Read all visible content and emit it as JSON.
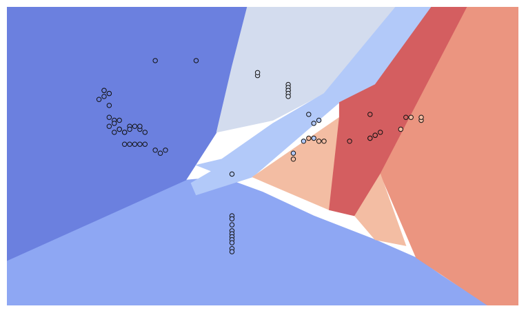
{
  "chart_data": {
    "type": "scatter",
    "title": "",
    "xlabel": "",
    "ylabel": "",
    "xlim": [
      0,
      100
    ],
    "ylim": [
      0,
      100
    ],
    "grid": false,
    "axes_visible": false,
    "background_kind": "decision-regions",
    "class_colors": {
      "class_0": "#6b80df",
      "class_1": "#8ea7f3",
      "class_2": "#b2c9f9",
      "class_3": "#d3dcee",
      "class_4": "#f3bda3",
      "class_5": "#eb9580",
      "class_6": "#d45e60"
    },
    "regions": [
      {
        "class": "class_1",
        "polygon": [
          [
            0,
            0
          ],
          [
            0,
            15
          ],
          [
            35,
            42
          ],
          [
            42,
            43
          ],
          [
            50,
            38
          ],
          [
            60,
            30
          ],
          [
            72,
            22
          ],
          [
            80,
            16
          ],
          [
            85,
            10
          ],
          [
            94,
            0
          ]
        ]
      },
      {
        "class": "class_0",
        "polygon": [
          [
            0,
            15
          ],
          [
            0,
            100
          ],
          [
            47,
            100
          ],
          [
            44,
            80
          ],
          [
            41,
            58
          ],
          [
            35,
            42
          ]
        ]
      },
      {
        "class": "class_3",
        "polygon": [
          [
            47,
            100
          ],
          [
            76,
            100
          ],
          [
            62,
            71
          ],
          [
            52,
            62
          ],
          [
            41,
            58
          ],
          [
            44,
            80
          ]
        ]
      },
      {
        "class": "class_2",
        "polygon": [
          [
            76,
            100
          ],
          [
            83,
            100
          ],
          [
            72,
            74
          ],
          [
            65,
            68
          ],
          [
            48,
            43
          ],
          [
            37,
            37
          ],
          [
            36,
            41
          ],
          [
            40,
            45
          ],
          [
            37,
            47
          ],
          [
            42,
            49
          ],
          [
            52,
            61
          ],
          [
            62,
            71
          ]
        ]
      },
      {
        "class": "class_4",
        "polygon": [
          [
            48,
            43
          ],
          [
            65,
            63
          ],
          [
            63,
            32
          ]
        ]
      },
      {
        "class": "class_6",
        "polygon": [
          [
            83,
            100
          ],
          [
            90,
            100
          ],
          [
            73,
            44
          ],
          [
            68,
            30
          ],
          [
            63,
            32
          ],
          [
            65,
            63
          ],
          [
            65,
            68
          ],
          [
            72,
            74
          ]
        ]
      },
      {
        "class": "class_5",
        "polygon": [
          [
            90,
            100
          ],
          [
            100,
            100
          ],
          [
            100,
            0
          ],
          [
            94,
            0
          ],
          [
            80,
            16
          ],
          [
            73,
            44
          ]
        ]
      },
      {
        "class": "class_4",
        "polygon": [
          [
            68,
            30
          ],
          [
            73,
            44
          ],
          [
            78,
            20
          ],
          [
            72,
            22
          ]
        ]
      }
    ],
    "series": [
      {
        "class": "class_0",
        "x": [
          29,
          37,
          19,
          19,
          20,
          20,
          19,
          18,
          20,
          22,
          21,
          20,
          21,
          22,
          21,
          22,
          23,
          20,
          23,
          24,
          24,
          25,
          26,
          26,
          27,
          23,
          24,
          25,
          26,
          27,
          29,
          30,
          31
        ],
        "y": [
          82,
          82,
          72,
          72,
          71,
          71,
          70,
          69,
          67,
          62,
          62,
          63,
          61,
          59,
          58,
          59,
          58,
          60,
          58,
          60,
          59,
          60,
          59,
          60,
          58,
          54,
          54,
          54,
          54,
          54,
          52,
          51,
          52
        ]
      },
      {
        "class": "class_1",
        "x": [
          44,
          44,
          44,
          44,
          44,
          44,
          44,
          44,
          44,
          44
        ],
        "y": [
          30,
          29,
          27,
          25,
          24,
          23,
          22,
          21,
          19,
          18
        ]
      },
      {
        "class": "class_2",
        "x": [
          44,
          56,
          59,
          60,
          61,
          60,
          58
        ],
        "y": [
          44,
          51,
          64,
          61,
          62,
          56,
          55
        ]
      },
      {
        "class": "class_3",
        "x": [
          49,
          49,
          55,
          55,
          55,
          55,
          55,
          55
        ],
        "y": [
          77,
          78,
          74,
          73,
          72,
          72,
          71,
          70
        ]
      },
      {
        "class": "class_4",
        "x": [
          56,
          59,
          61,
          62,
          77,
          79,
          81,
          81
        ],
        "y": [
          49,
          56,
          55,
          55,
          59,
          63,
          62,
          63
        ]
      },
      {
        "class": "class_6",
        "x": [
          67,
          71,
          71,
          72,
          72,
          73,
          71,
          78
        ],
        "y": [
          55,
          56,
          56,
          57,
          57,
          58,
          64,
          63
        ]
      }
    ]
  }
}
